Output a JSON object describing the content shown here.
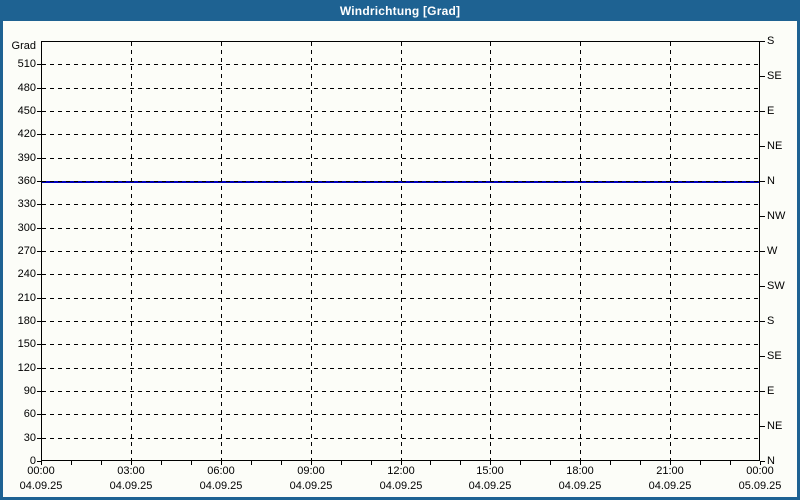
{
  "title": "Windrichtung [Grad]",
  "colors": {
    "titlebar": "#1E6292",
    "frame": "#1E6292",
    "background": "#FCFDF8",
    "grid": "#000000",
    "line": "#0000BB",
    "text": "#000000",
    "title_text": "#FFFFFF"
  },
  "axes": {
    "y_left": {
      "unit_label": "Grad",
      "tick_step": 30,
      "ticks": [
        0,
        30,
        60,
        90,
        120,
        150,
        180,
        210,
        240,
        270,
        300,
        330,
        360,
        390,
        420,
        450,
        480,
        510
      ]
    },
    "y_right": {
      "tick_step": 45,
      "labels_bottom_to_top": [
        "N",
        "NE",
        "E",
        "SE",
        "S",
        "SW",
        "W",
        "NW",
        "N",
        "NE",
        "E",
        "SE",
        "S"
      ]
    },
    "x": {
      "minor_step_hours": 1,
      "major_step_hours": 3,
      "ticks": [
        {
          "hour": 0,
          "time": "00:00",
          "date": "04.09.25"
        },
        {
          "hour": 3,
          "time": "03:00",
          "date": "04.09.25"
        },
        {
          "hour": 6,
          "time": "06:00",
          "date": "04.09.25"
        },
        {
          "hour": 9,
          "time": "09:00",
          "date": "04.09.25"
        },
        {
          "hour": 12,
          "time": "12:00",
          "date": "04.09.25"
        },
        {
          "hour": 15,
          "time": "15:00",
          "date": "04.09.25"
        },
        {
          "hour": 18,
          "time": "18:00",
          "date": "04.09.25"
        },
        {
          "hour": 21,
          "time": "21:00",
          "date": "04.09.25"
        },
        {
          "hour": 24,
          "time": "00:00",
          "date": "05.09.25"
        }
      ]
    }
  },
  "chart_data": {
    "type": "line",
    "title": "Windrichtung [Grad]",
    "ylabel": "Grad",
    "ylim": [
      0,
      540
    ],
    "y_major_step": 30,
    "right_axis_compass_step_deg": 45,
    "xlim_hours": [
      0,
      24
    ],
    "x_time_range": [
      "04.09.25 00:00",
      "05.09.25 00:00"
    ],
    "grid": true,
    "legend": "none",
    "series": [
      {
        "name": "Windrichtung",
        "color": "#0000BB",
        "x_hours": [
          0,
          24
        ],
        "values": [
          360,
          360
        ],
        "note": "constant 360 Grad (N) over entire period"
      }
    ]
  }
}
